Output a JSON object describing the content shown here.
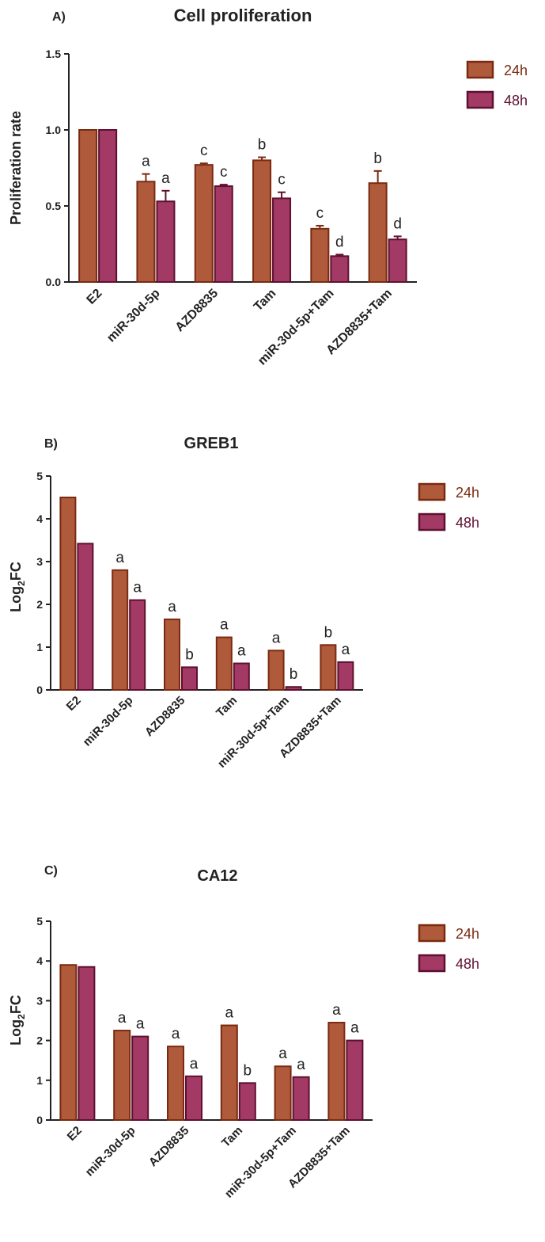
{
  "colors": {
    "fill_24h": "#b05a3c",
    "stroke_24h": "#7a2a10",
    "fill_48h": "#a33a66",
    "stroke_48h": "#5e1030",
    "legend_text_24h": "#7a2a10",
    "legend_text_48h": "#5e1030",
    "axis": "#222222"
  },
  "chart_data": [
    {
      "panel": "A)",
      "type": "bar",
      "title": "Cell proliferation",
      "ylabel": "Proliferation rate",
      "ylim": [
        0,
        1.5
      ],
      "yticks": [
        "0.0",
        "0.5",
        "1.0",
        "1.5"
      ],
      "error_bars": true,
      "categories": [
        "E2",
        "miR-30d-5p",
        "AZD8835",
        "Tam",
        "miR-30d-5p+Tam",
        "AZD8835+Tam"
      ],
      "series": [
        {
          "name": "24h",
          "values": [
            1.0,
            0.66,
            0.77,
            0.8,
            0.35,
            0.65
          ],
          "errors": [
            0,
            0.05,
            0.01,
            0.02,
            0.02,
            0.08
          ],
          "annotations": [
            "",
            "a",
            "c",
            "b",
            "c",
            "b"
          ]
        },
        {
          "name": "48h",
          "values": [
            1.0,
            0.53,
            0.63,
            0.55,
            0.17,
            0.28
          ],
          "errors": [
            0,
            0.07,
            0.01,
            0.04,
            0.01,
            0.02
          ],
          "annotations": [
            "",
            "a",
            "c",
            "c",
            "d",
            "d"
          ]
        }
      ],
      "legend": "top-right"
    },
    {
      "panel": "B)",
      "type": "bar",
      "title": "GREB1",
      "ylabel_main": "Log",
      "ylabel_sub": "2",
      "ylabel_tail": "FC",
      "ylim": [
        0,
        5
      ],
      "yticks": [
        "0",
        "1",
        "2",
        "3",
        "4",
        "5"
      ],
      "error_bars": false,
      "categories": [
        "E2",
        "miR-30d-5p",
        "AZD8835",
        "Tam",
        "miR-30d-5p+Tam",
        "AZD8835+Tam"
      ],
      "series": [
        {
          "name": "24h",
          "values": [
            4.5,
            2.8,
            1.65,
            1.23,
            0.92,
            1.05
          ],
          "annotations": [
            "",
            "a",
            "a",
            "a",
            "a",
            "b"
          ]
        },
        {
          "name": "48h",
          "values": [
            3.42,
            2.1,
            0.53,
            0.62,
            0.07,
            0.65
          ],
          "annotations": [
            "",
            "a",
            "b",
            "a",
            "b",
            "a"
          ]
        }
      ],
      "legend": "top-right"
    },
    {
      "panel": "C)",
      "type": "bar",
      "title": "CA12",
      "ylabel_main": "Log",
      "ylabel_sub": "2",
      "ylabel_tail": "FC",
      "ylim": [
        0,
        5
      ],
      "yticks": [
        "0",
        "1",
        "2",
        "3",
        "4",
        "5"
      ],
      "error_bars": false,
      "categories": [
        "E2",
        "miR-30d-5p",
        "AZD8835",
        "Tam",
        "miR-30d-5p+Tam",
        "AZD8835+Tam"
      ],
      "series": [
        {
          "name": "24h",
          "values": [
            3.9,
            2.25,
            1.85,
            2.38,
            1.35,
            2.45
          ],
          "annotations": [
            "",
            "a",
            "a",
            "a",
            "a",
            "a"
          ]
        },
        {
          "name": "48h",
          "values": [
            3.85,
            2.1,
            1.1,
            0.93,
            1.08,
            2.0
          ],
          "annotations": [
            "",
            "a",
            "a",
            "b",
            "a",
            "a"
          ]
        }
      ],
      "legend": "top-right"
    }
  ]
}
